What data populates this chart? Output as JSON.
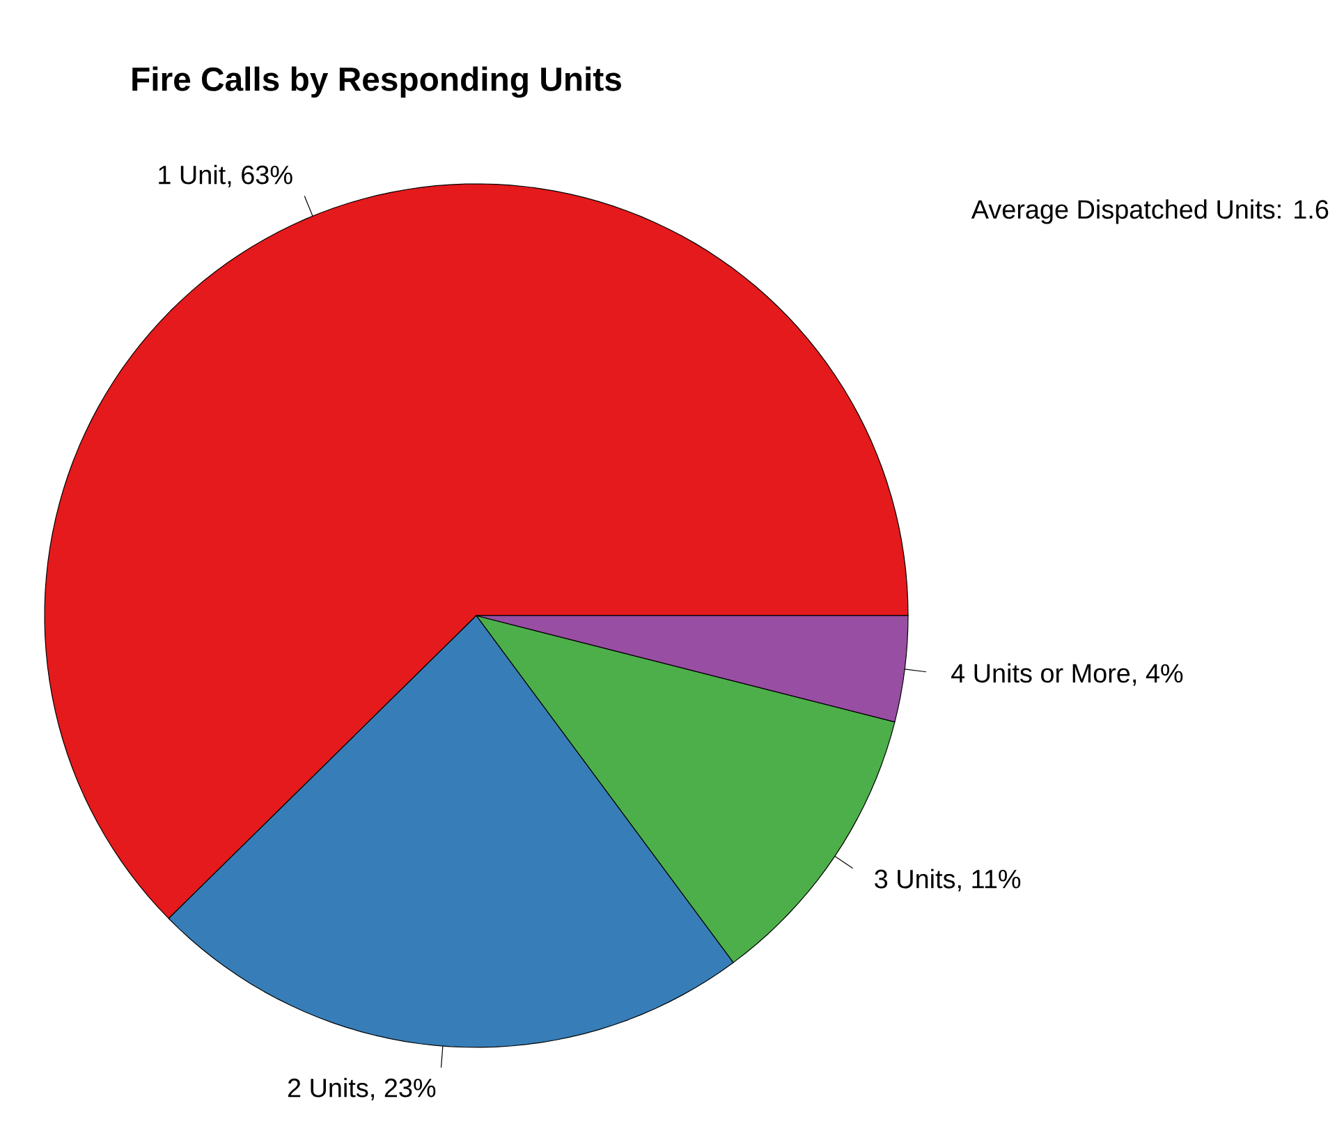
{
  "chart_data": {
    "type": "pie",
    "title": "Fire Calls by Responding Units",
    "categories": [
      "1 Unit, 63%",
      "2 Units, 23%",
      "3 Units, 11%",
      "4 Units or More, 4%"
    ],
    "values": [
      63,
      23,
      11,
      4
    ],
    "colors": [
      "#e41a1c",
      "#377eb8",
      "#4daf4a",
      "#984ea3"
    ],
    "annotations": [
      "Average Dispatched Units: 1.6"
    ]
  }
}
